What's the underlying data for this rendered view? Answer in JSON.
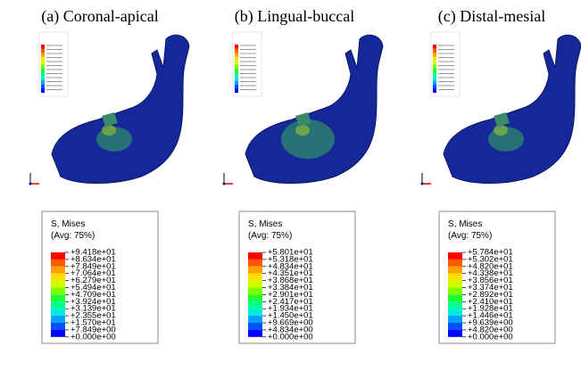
{
  "panels": [
    {
      "title": "(a) Coronal-apical",
      "legend": {
        "title": "S, Mises",
        "subtitle": "(Avg: 75%)",
        "labels": [
          "+9.418e+01",
          "+8.634e+01",
          "+7.849e+01",
          "+7.064e+01",
          "+6.279e+01",
          "+5.494e+01",
          "+4.709e+01",
          "+3.924e+01",
          "+3.139e+01",
          "+2.355e+01",
          "+1.570e+01",
          "+7.849e+00",
          "+0.000e+00"
        ]
      }
    },
    {
      "title": "(b) Lingual-buccal",
      "legend": {
        "title": "S, Mises",
        "subtitle": "(Avg: 75%)",
        "labels": [
          "+5.801e+01",
          "+5.318e+01",
          "+4.834e+01",
          "+4.351e+01",
          "+3.868e+01",
          "+3.384e+01",
          "+2.901e+01",
          "+2.417e+01",
          "+1.934e+01",
          "+1.450e+01",
          "+9.669e+00",
          "+4.834e+00",
          "+0.000e+00"
        ]
      }
    },
    {
      "title": "(c) Distal-mesial",
      "legend": {
        "title": "S, Mises",
        "subtitle": "(Avg: 75%)",
        "labels": [
          "+5.784e+01",
          "+5.302e+01",
          "+4.820e+01",
          "+4.338e+01",
          "+3.856e+01",
          "+3.374e+01",
          "+2.892e+01",
          "+2.410e+01",
          "+1.928e+01",
          "+1.446e+01",
          "+9.639e+00",
          "+4.820e+00",
          "+0.000e+00"
        ]
      }
    }
  ]
}
